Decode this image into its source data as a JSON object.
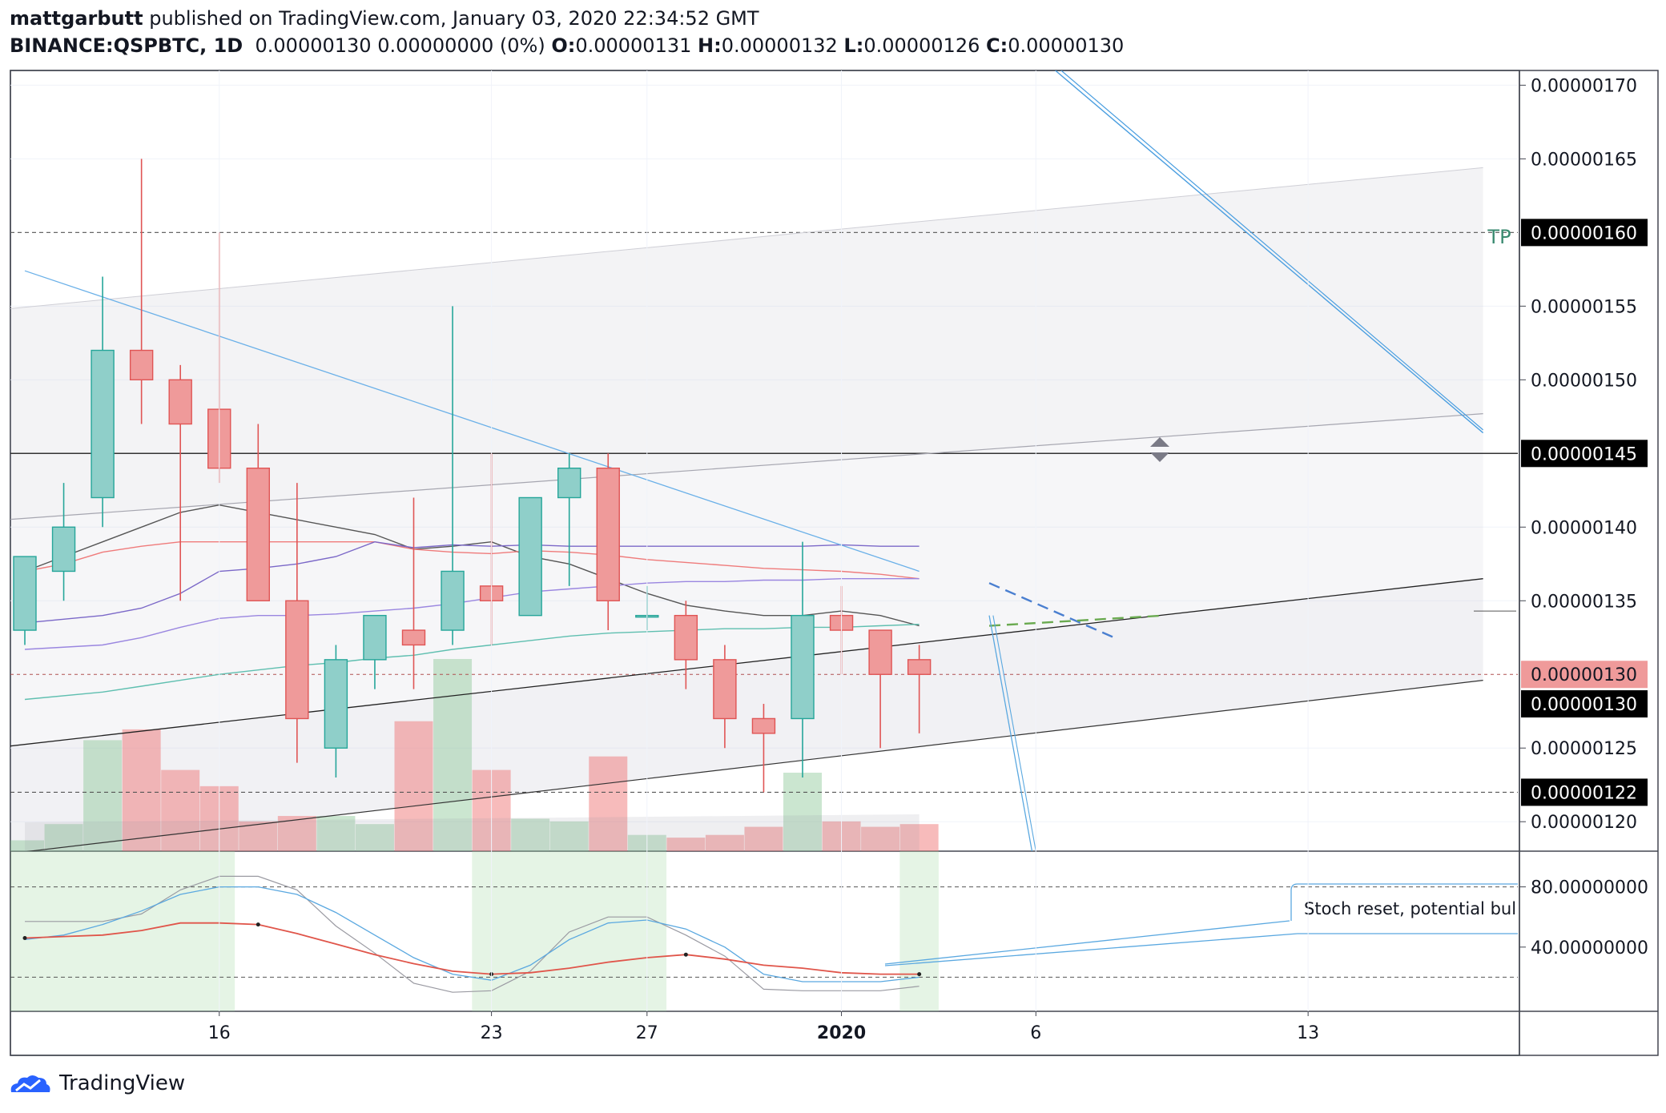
{
  "header": {
    "author": "mattgarbutt",
    "published_text": "published on TradingView.com, January 03, 2020 22:34:52 GMT",
    "symbol": "BINANCE:QSPBTC, 1D",
    "last": "0.00000130",
    "change": "0.00000000 (0%)",
    "o_label": "O:",
    "o_val": "0.00000131",
    "h_label": "H:",
    "h_val": "0.00000132",
    "l_label": "L:",
    "l_val": "0.00000126",
    "c_label": "C:",
    "c_val": "0.00000130"
  },
  "footer": {
    "brand": "TradingView"
  },
  "colors": {
    "up": "#8fcfc9",
    "up_border": "#26a69a",
    "down": "#ef9a9a",
    "down_border": "#e05555",
    "axis_badge": "#000000",
    "price_badge": "#ef9a9a"
  },
  "chart_data": {
    "type": "candlestick",
    "title": "BINANCE:QSPBTC, 1D",
    "price_axis": {
      "ylim": [
        1.18,
        1.71
      ],
      "ticks": [
        "0.00000120",
        "0.00000125",
        "0.00000135",
        "0.00000140",
        "0.00000150",
        "0.00000155",
        "0.00000165",
        "0.00000170"
      ],
      "tick_values": [
        1.2,
        1.25,
        1.35,
        1.4,
        1.5,
        1.55,
        1.65,
        1.7
      ],
      "badges": [
        {
          "label": "0.00000160",
          "value": 1.6,
          "style": "black"
        },
        {
          "label": "0.00000145",
          "value": 1.45,
          "style": "black"
        },
        {
          "label": "0.00000130",
          "value": 1.3,
          "style": "red"
        },
        {
          "label": "0.00000130",
          "value": 1.28,
          "style": "black"
        },
        {
          "label": "0.00000122",
          "value": 1.22,
          "style": "black"
        }
      ]
    },
    "time_axis": {
      "labels": [
        "16",
        "23",
        "27",
        "2020",
        "6",
        "13"
      ],
      "label_index": [
        5,
        12,
        16,
        21,
        26,
        33
      ]
    },
    "candles": [
      {
        "i": 0,
        "o": 1.33,
        "h": 1.38,
        "l": 1.32,
        "c": 1.38
      },
      {
        "i": 1,
        "o": 1.37,
        "h": 1.43,
        "l": 1.35,
        "c": 1.4
      },
      {
        "i": 2,
        "o": 1.42,
        "h": 1.57,
        "l": 1.4,
        "c": 1.52
      },
      {
        "i": 3,
        "o": 1.52,
        "h": 1.65,
        "l": 1.47,
        "c": 1.5
      },
      {
        "i": 4,
        "o": 1.5,
        "h": 1.51,
        "l": 1.35,
        "c": 1.47
      },
      {
        "i": 5,
        "o": 1.48,
        "h": 1.6,
        "l": 1.43,
        "c": 1.44
      },
      {
        "i": 6,
        "o": 1.44,
        "h": 1.47,
        "l": 1.35,
        "c": 1.35
      },
      {
        "i": 7,
        "o": 1.35,
        "h": 1.43,
        "l": 1.24,
        "c": 1.27
      },
      {
        "i": 8,
        "o": 1.25,
        "h": 1.32,
        "l": 1.23,
        "c": 1.31
      },
      {
        "i": 9,
        "o": 1.31,
        "h": 1.34,
        "l": 1.29,
        "c": 1.34
      },
      {
        "i": 10,
        "o": 1.33,
        "h": 1.42,
        "l": 1.29,
        "c": 1.32
      },
      {
        "i": 11,
        "o": 1.33,
        "h": 1.55,
        "l": 1.32,
        "c": 1.37
      },
      {
        "i": 12,
        "o": 1.36,
        "h": 1.45,
        "l": 1.32,
        "c": 1.35
      },
      {
        "i": 13,
        "o": 1.34,
        "h": 1.42,
        "l": 1.34,
        "c": 1.42
      },
      {
        "i": 14,
        "o": 1.42,
        "h": 1.45,
        "l": 1.36,
        "c": 1.44
      },
      {
        "i": 15,
        "o": 1.44,
        "h": 1.45,
        "l": 1.33,
        "c": 1.35
      },
      {
        "i": 16,
        "o": 1.34,
        "h": 1.36,
        "l": 1.33,
        "c": 1.34
      },
      {
        "i": 17,
        "o": 1.34,
        "h": 1.35,
        "l": 1.29,
        "c": 1.31
      },
      {
        "i": 18,
        "o": 1.31,
        "h": 1.32,
        "l": 1.25,
        "c": 1.27
      },
      {
        "i": 19,
        "o": 1.27,
        "h": 1.28,
        "l": 1.22,
        "c": 1.26
      },
      {
        "i": 20,
        "o": 1.27,
        "h": 1.39,
        "l": 1.23,
        "c": 1.34
      },
      {
        "i": 21,
        "o": 1.34,
        "h": 1.36,
        "l": 1.3,
        "c": 1.33
      },
      {
        "i": 22,
        "o": 1.33,
        "h": 1.33,
        "l": 1.25,
        "c": 1.3
      },
      {
        "i": 23,
        "o": 1.31,
        "h": 1.32,
        "l": 1.26,
        "c": 1.3
      }
    ],
    "volume": [
      {
        "i": 0,
        "v": 0.4,
        "dir": "up"
      },
      {
        "i": 1,
        "v": 1.0,
        "dir": "up"
      },
      {
        "i": 2,
        "v": 4.1,
        "dir": "up"
      },
      {
        "i": 3,
        "v": 4.5,
        "dir": "down"
      },
      {
        "i": 4,
        "v": 3.0,
        "dir": "down"
      },
      {
        "i": 5,
        "v": 2.4,
        "dir": "down"
      },
      {
        "i": 6,
        "v": 1.1,
        "dir": "down"
      },
      {
        "i": 7,
        "v": 1.3,
        "dir": "down"
      },
      {
        "i": 8,
        "v": 1.3,
        "dir": "up"
      },
      {
        "i": 9,
        "v": 1.0,
        "dir": "up"
      },
      {
        "i": 10,
        "v": 4.8,
        "dir": "down"
      },
      {
        "i": 11,
        "v": 7.1,
        "dir": "up"
      },
      {
        "i": 12,
        "v": 3.0,
        "dir": "down"
      },
      {
        "i": 13,
        "v": 1.2,
        "dir": "up"
      },
      {
        "i": 14,
        "v": 1.1,
        "dir": "up"
      },
      {
        "i": 15,
        "v": 3.5,
        "dir": "down"
      },
      {
        "i": 16,
        "v": 0.6,
        "dir": "up"
      },
      {
        "i": 17,
        "v": 0.5,
        "dir": "down"
      },
      {
        "i": 18,
        "v": 0.6,
        "dir": "down"
      },
      {
        "i": 19,
        "v": 0.9,
        "dir": "down"
      },
      {
        "i": 20,
        "v": 2.9,
        "dir": "up"
      },
      {
        "i": 21,
        "v": 1.1,
        "dir": "down"
      },
      {
        "i": 22,
        "v": 0.9,
        "dir": "down"
      },
      {
        "i": 23,
        "v": 1.0,
        "dir": "down"
      }
    ],
    "moving_averages": [
      {
        "name": "ma_black",
        "color": "#555555",
        "points": [
          [
            0,
            1.37
          ],
          [
            1,
            1.38
          ],
          [
            2,
            1.39
          ],
          [
            3,
            1.4
          ],
          [
            4,
            1.41
          ],
          [
            5,
            1.415
          ],
          [
            6,
            1.41
          ],
          [
            7,
            1.405
          ],
          [
            8,
            1.4
          ],
          [
            9,
            1.395
          ],
          [
            10,
            1.385
          ],
          [
            11,
            1.387
          ],
          [
            12,
            1.39
          ],
          [
            13,
            1.38
          ],
          [
            14,
            1.375
          ],
          [
            15,
            1.365
          ],
          [
            16,
            1.355
          ],
          [
            17,
            1.347
          ],
          [
            18,
            1.343
          ],
          [
            19,
            1.34
          ],
          [
            20,
            1.34
          ],
          [
            21,
            1.343
          ],
          [
            22,
            1.34
          ],
          [
            23,
            1.333
          ]
        ]
      },
      {
        "name": "ma_red",
        "color": "#ef7b7b",
        "points": [
          [
            0,
            1.37
          ],
          [
            1,
            1.375
          ],
          [
            2,
            1.383
          ],
          [
            3,
            1.387
          ],
          [
            4,
            1.39
          ],
          [
            5,
            1.39
          ],
          [
            6,
            1.39
          ],
          [
            7,
            1.39
          ],
          [
            8,
            1.39
          ],
          [
            9,
            1.39
          ],
          [
            10,
            1.385
          ],
          [
            11,
            1.383
          ],
          [
            12,
            1.382
          ],
          [
            13,
            1.384
          ],
          [
            14,
            1.383
          ],
          [
            15,
            1.381
          ],
          [
            16,
            1.378
          ],
          [
            17,
            1.376
          ],
          [
            18,
            1.374
          ],
          [
            19,
            1.372
          ],
          [
            20,
            1.371
          ],
          [
            21,
            1.37
          ],
          [
            22,
            1.368
          ],
          [
            23,
            1.365
          ]
        ]
      },
      {
        "name": "ma_purple",
        "color": "#7b68c8",
        "points": [
          [
            0,
            1.335
          ],
          [
            2,
            1.34
          ],
          [
            3,
            1.345
          ],
          [
            4,
            1.355
          ],
          [
            5,
            1.37
          ],
          [
            6,
            1.372
          ],
          [
            7,
            1.375
          ],
          [
            8,
            1.38
          ],
          [
            9,
            1.39
          ],
          [
            10,
            1.386
          ],
          [
            11,
            1.388
          ],
          [
            12,
            1.387
          ],
          [
            13,
            1.388
          ],
          [
            14,
            1.387
          ],
          [
            15,
            1.387
          ],
          [
            16,
            1.387
          ],
          [
            17,
            1.387
          ],
          [
            18,
            1.387
          ],
          [
            19,
            1.387
          ],
          [
            20,
            1.387
          ],
          [
            21,
            1.388
          ],
          [
            22,
            1.387
          ],
          [
            23,
            1.387
          ]
        ]
      },
      {
        "name": "ma_violet",
        "color": "#9a86e0",
        "points": [
          [
            0,
            1.317
          ],
          [
            2,
            1.32
          ],
          [
            3,
            1.325
          ],
          [
            4,
            1.332
          ],
          [
            5,
            1.338
          ],
          [
            6,
            1.34
          ],
          [
            7,
            1.34
          ],
          [
            8,
            1.341
          ],
          [
            9,
            1.343
          ],
          [
            10,
            1.345
          ],
          [
            11,
            1.348
          ],
          [
            12,
            1.352
          ],
          [
            13,
            1.356
          ],
          [
            14,
            1.358
          ],
          [
            15,
            1.36
          ],
          [
            16,
            1.362
          ],
          [
            17,
            1.363
          ],
          [
            18,
            1.363
          ],
          [
            19,
            1.364
          ],
          [
            20,
            1.364
          ],
          [
            21,
            1.365
          ],
          [
            22,
            1.365
          ],
          [
            23,
            1.365
          ]
        ]
      },
      {
        "name": "ma_teal",
        "color": "#5fbfb0",
        "points": [
          [
            0,
            1.283
          ],
          [
            2,
            1.288
          ],
          [
            3,
            1.292
          ],
          [
            4,
            1.296
          ],
          [
            5,
            1.3
          ],
          [
            6,
            1.303
          ],
          [
            7,
            1.306
          ],
          [
            8,
            1.308
          ],
          [
            9,
            1.311
          ],
          [
            10,
            1.313
          ],
          [
            11,
            1.317
          ],
          [
            12,
            1.32
          ],
          [
            13,
            1.323
          ],
          [
            14,
            1.326
          ],
          [
            15,
            1.328
          ],
          [
            16,
            1.329
          ],
          [
            17,
            1.33
          ],
          [
            18,
            1.331
          ],
          [
            19,
            1.331
          ],
          [
            20,
            1.332
          ],
          [
            21,
            1.332
          ],
          [
            22,
            1.333
          ],
          [
            23,
            1.334
          ]
        ]
      }
    ],
    "drawings": {
      "tp_label": "TP",
      "channel_top": [
        [
          -0.5,
          1.548
        ],
        [
          37.5,
          1.644
        ]
      ],
      "channel_mid": [
        [
          -0.5,
          1.405
        ],
        [
          37.5,
          1.477
        ]
      ],
      "channel_lower": [
        [
          -0.5,
          1.251
        ],
        [
          37.5,
          1.365
        ]
      ],
      "channel_bottom": [
        [
          -0.5,
          1.178
        ],
        [
          37.5,
          1.296
        ]
      ],
      "downtrend_blue": [
        [
          0,
          1.574
        ],
        [
          23,
          1.37
        ]
      ],
      "steep_blue": [
        [
          26.5,
          1.71
        ],
        [
          37.5,
          1.464
        ]
      ],
      "dashed_blue": [
        [
          24.8,
          1.362
        ],
        [
          28.1,
          1.324
        ]
      ],
      "dashed_green": [
        [
          24.8,
          1.333
        ],
        [
          29.3,
          1.34
        ]
      ],
      "blue_drop": [
        [
          24.8,
          1.34
        ],
        [
          25.9,
          1.18
        ]
      ]
    },
    "stochastic": {
      "ylim": [
        0,
        100
      ],
      "ticks": [
        "80.00000000",
        "40.00000000"
      ],
      "tick_values": [
        80,
        40
      ],
      "bands": [
        80,
        20
      ],
      "k": [
        [
          0,
          45
        ],
        [
          1,
          48
        ],
        [
          2,
          55
        ],
        [
          3,
          64
        ],
        [
          4,
          75
        ],
        [
          5,
          80
        ],
        [
          6,
          80
        ],
        [
          7,
          75
        ],
        [
          8,
          63
        ],
        [
          9,
          48
        ],
        [
          10,
          33
        ],
        [
          11,
          22
        ],
        [
          12,
          18
        ],
        [
          13,
          28
        ],
        [
          14,
          45
        ],
        [
          15,
          56
        ],
        [
          16,
          58
        ],
        [
          17,
          52
        ],
        [
          18,
          40
        ],
        [
          19,
          22
        ],
        [
          20,
          17
        ],
        [
          21,
          17
        ],
        [
          22,
          17
        ],
        [
          23,
          20
        ]
      ],
      "d": [
        [
          0,
          46
        ],
        [
          1,
          47
        ],
        [
          2,
          48
        ],
        [
          3,
          51
        ],
        [
          4,
          56
        ],
        [
          5,
          56
        ],
        [
          6,
          55
        ],
        [
          7,
          49
        ],
        [
          8,
          42
        ],
        [
          9,
          35
        ],
        [
          10,
          29
        ],
        [
          11,
          24
        ],
        [
          12,
          22
        ],
        [
          13,
          23
        ],
        [
          14,
          26
        ],
        [
          15,
          30
        ],
        [
          16,
          33
        ],
        [
          17,
          35
        ],
        [
          18,
          32
        ],
        [
          19,
          28
        ],
        [
          20,
          26
        ],
        [
          21,
          23
        ],
        [
          22,
          22
        ],
        [
          23,
          22
        ]
      ],
      "slow": [
        [
          0,
          57
        ],
        [
          1,
          57
        ],
        [
          2,
          57
        ],
        [
          3,
          62
        ],
        [
          4,
          78
        ],
        [
          5,
          87
        ],
        [
          6,
          87
        ],
        [
          7,
          78
        ],
        [
          8,
          54
        ],
        [
          9,
          36
        ],
        [
          10,
          16
        ],
        [
          11,
          10
        ],
        [
          12,
          11
        ],
        [
          13,
          24
        ],
        [
          14,
          50
        ],
        [
          15,
          60
        ],
        [
          16,
          60
        ],
        [
          17,
          48
        ],
        [
          18,
          34
        ],
        [
          19,
          12
        ],
        [
          20,
          11
        ],
        [
          21,
          11
        ],
        [
          22,
          11
        ],
        [
          23,
          14
        ]
      ],
      "shade_ranges": [
        [
          -0.5,
          5.4
        ],
        [
          11.5,
          16.5
        ],
        [
          22.5,
          23.5
        ]
      ],
      "note": "Stoch reset, potential bull"
    }
  }
}
